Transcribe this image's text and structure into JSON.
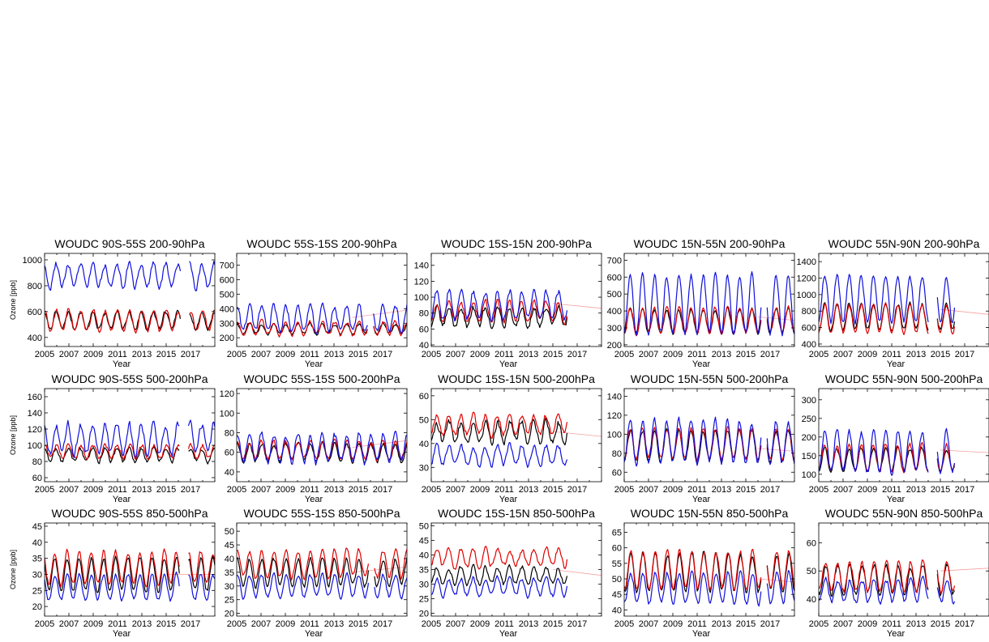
{
  "figure": {
    "colors": {
      "obs": "#000000",
      "model_a": "#e00000",
      "model_b": "#1010dd",
      "trend": "#f5a0a0"
    },
    "xticks": [
      "2005",
      "2007",
      "2009",
      "2011",
      "2013",
      "2015",
      "2017"
    ],
    "xlabel": "Year",
    "ylabel": "Ozone [ppb]",
    "rows": [
      {
        "layer": "200-90hPa"
      },
      {
        "layer": "500-200hPa"
      },
      {
        "layer": "850-500hPa"
      }
    ],
    "cols": [
      {
        "band": "90S-55S"
      },
      {
        "band": "55S-15S"
      },
      {
        "band": "15S-15N"
      },
      {
        "band": "15N-55N"
      },
      {
        "band": "55N-90N"
      }
    ]
  },
  "chart_data": [
    {
      "type": "line",
      "title": "WOUDC 90S-55S 200-90hPa",
      "xlabel": "Year",
      "ylabel": "Ozone [ppb]",
      "xlim": [
        2005,
        2019
      ],
      "ylim": [
        330,
        1050
      ],
      "yticks": [
        400,
        600,
        800,
        1000
      ],
      "x_end": 2019,
      "gaps": [
        [
          2016.2,
          2016.9
        ]
      ],
      "series": [
        {
          "color": "#000000",
          "mean": 530,
          "amp": 65,
          "phase": 0.7,
          "noise": 30
        },
        {
          "color": "#e00000",
          "mean": 530,
          "amp": 80,
          "phase": 0.75,
          "noise": 30
        },
        {
          "color": "#1010dd",
          "mean": 880,
          "amp": 90,
          "phase": 0.7,
          "noise": 45
        }
      ]
    },
    {
      "type": "line",
      "title": "WOUDC 55S-15S 200-90hPa",
      "xlabel": "Year",
      "ylabel": "",
      "xlim": [
        2005,
        2019
      ],
      "ylim": [
        140,
        780
      ],
      "yticks": [
        200,
        300,
        400,
        500,
        600,
        700
      ],
      "x_end": 2019,
      "gaps": [
        [
          2015.8,
          2016.2
        ]
      ],
      "trend": [
        [
          2014.5,
          340
        ],
        [
          2019,
          390
        ]
      ],
      "series": [
        {
          "color": "#000000",
          "mean": 260,
          "amp": 35,
          "phase": 0.8,
          "noise": 20
        },
        {
          "color": "#e00000",
          "mean": 265,
          "amp": 45,
          "phase": 0.8,
          "noise": 25
        },
        {
          "color": "#1010dd",
          "mean": 330,
          "amp": 90,
          "phase": 0.8,
          "noise": 40
        }
      ]
    },
    {
      "type": "line",
      "title": "WOUDC 15S-15N 200-90hPa",
      "xlabel": "Year",
      "ylabel": "",
      "xlim": [
        2005,
        2019
      ],
      "ylim": [
        38,
        155
      ],
      "yticks": [
        40,
        60,
        80,
        100,
        120,
        140
      ],
      "x_end": 2016.2,
      "gaps": [],
      "trend": [
        [
          2015,
          92
        ],
        [
          2019,
          86
        ]
      ],
      "series": [
        {
          "color": "#000000",
          "mean": 75,
          "amp": 12,
          "phase": 0.2,
          "noise": 7
        },
        {
          "color": "#e00000",
          "mean": 82,
          "amp": 12,
          "phase": 0.2,
          "noise": 6
        },
        {
          "color": "#1010dd",
          "mean": 90,
          "amp": 18,
          "phase": 0.2,
          "noise": 8
        }
      ]
    },
    {
      "type": "line",
      "title": "WOUDC 15N-55N 200-90hPa",
      "xlabel": "Year",
      "ylabel": "",
      "xlim": [
        2005,
        2019
      ],
      "ylim": [
        190,
        740
      ],
      "yticks": [
        200,
        300,
        400,
        500,
        600,
        700
      ],
      "x_end": 2019,
      "gaps": [
        [
          2016.3,
          2016.7
        ]
      ],
      "trend": [
        [
          2016,
          365
        ],
        [
          2019,
          345
        ]
      ],
      "series": [
        {
          "color": "#000000",
          "mean": 340,
          "amp": 70,
          "phase": 0.25,
          "noise": 20
        },
        {
          "color": "#e00000",
          "mean": 345,
          "amp": 75,
          "phase": 0.25,
          "noise": 20
        },
        {
          "color": "#1010dd",
          "mean": 440,
          "amp": 170,
          "phase": 0.25,
          "noise": 30
        }
      ]
    },
    {
      "type": "line",
      "title": "WOUDC 55N-90N 200-90hPa",
      "xlabel": "Year",
      "ylabel": "",
      "xlim": [
        2005,
        2019
      ],
      "ylim": [
        370,
        1500
      ],
      "yticks": [
        400,
        600,
        800,
        1000,
        1200,
        1400
      ],
      "x_end": 2016.2,
      "gaps": [
        [
          2014.0,
          2014.7
        ]
      ],
      "trend": [
        [
          2015,
          820
        ],
        [
          2019,
          760
        ]
      ],
      "series": [
        {
          "color": "#000000",
          "mean": 730,
          "amp": 160,
          "phase": 0.25,
          "noise": 40
        },
        {
          "color": "#e00000",
          "mean": 710,
          "amp": 170,
          "phase": 0.25,
          "noise": 40
        },
        {
          "color": "#1010dd",
          "mean": 950,
          "amp": 280,
          "phase": 0.25,
          "noise": 60
        }
      ]
    },
    {
      "type": "line",
      "title": "WOUDC 90S-55S 500-200hPa",
      "xlabel": "Year",
      "ylabel": "Ozone [ppb]",
      "xlim": [
        2005,
        2019
      ],
      "ylim": [
        55,
        170
      ],
      "yticks": [
        60,
        80,
        100,
        120,
        140,
        160
      ],
      "x_end": 2019,
      "gaps": [
        [
          2016.1,
          2016.8
        ]
      ],
      "series": [
        {
          "color": "#000000",
          "mean": 88,
          "amp": 8,
          "phase": 0.7,
          "noise": 5
        },
        {
          "color": "#e00000",
          "mean": 92,
          "amp": 8,
          "phase": 0.75,
          "noise": 5
        },
        {
          "color": "#1010dd",
          "mean": 108,
          "amp": 18,
          "phase": 0.7,
          "noise": 9
        }
      ]
    },
    {
      "type": "line",
      "title": "WOUDC 55S-15S 500-200hPa",
      "xlabel": "Year",
      "ylabel": "",
      "xlim": [
        2005,
        2019
      ],
      "ylim": [
        30,
        125
      ],
      "yticks": [
        40,
        60,
        80,
        100,
        120
      ],
      "x_end": 2019,
      "gaps": [],
      "trend": [
        [
          2014.5,
          65
        ],
        [
          2019,
          72
        ]
      ],
      "series": [
        {
          "color": "#000000",
          "mean": 60,
          "amp": 9,
          "phase": 0.8,
          "noise": 4
        },
        {
          "color": "#e00000",
          "mean": 62,
          "amp": 9,
          "phase": 0.8,
          "noise": 4
        },
        {
          "color": "#1010dd",
          "mean": 64,
          "amp": 14,
          "phase": 0.8,
          "noise": 6
        }
      ]
    },
    {
      "type": "line",
      "title": "WOUDC 15S-15N 500-200hPa",
      "xlabel": "Year",
      "ylabel": "",
      "xlim": [
        2005,
        2019
      ],
      "ylim": [
        24,
        63
      ],
      "yticks": [
        30,
        40,
        50,
        60
      ],
      "x_end": 2016.2,
      "gaps": [],
      "trend": [
        [
          2015,
          45
        ],
        [
          2019,
          43
        ]
      ],
      "series": [
        {
          "color": "#000000",
          "mean": 45,
          "amp": 4,
          "phase": 0.2,
          "noise": 3
        },
        {
          "color": "#e00000",
          "mean": 48,
          "amp": 4,
          "phase": 0.2,
          "noise": 2.5
        },
        {
          "color": "#1010dd",
          "mean": 35,
          "amp": 4,
          "phase": 0.2,
          "noise": 2
        }
      ]
    },
    {
      "type": "line",
      "title": "WOUDC 15N-55N 500-200hPa",
      "xlabel": "Year",
      "ylabel": "",
      "xlim": [
        2005,
        2019
      ],
      "ylim": [
        50,
        148
      ],
      "yticks": [
        60,
        80,
        100,
        120,
        140
      ],
      "x_end": 2019,
      "gaps": [
        [
          2016.3,
          2016.7
        ]
      ],
      "trend": [
        [
          2016,
          85
        ],
        [
          2019,
          82
        ]
      ],
      "series": [
        {
          "color": "#000000",
          "mean": 88,
          "amp": 16,
          "phase": 0.25,
          "noise": 5
        },
        {
          "color": "#e00000",
          "mean": 90,
          "amp": 16,
          "phase": 0.25,
          "noise": 5
        },
        {
          "color": "#1010dd",
          "mean": 92,
          "amp": 22,
          "phase": 0.25,
          "noise": 6
        }
      ]
    },
    {
      "type": "line",
      "title": "WOUDC 55N-90N 500-200hPa",
      "xlabel": "Year",
      "ylabel": "",
      "xlim": [
        2005,
        2019
      ],
      "ylim": [
        80,
        330
      ],
      "yticks": [
        100,
        150,
        200,
        250,
        300
      ],
      "x_end": 2016.2,
      "gaps": [
        [
          2014.0,
          2014.7
        ]
      ],
      "trend": [
        [
          2015,
          165
        ],
        [
          2019,
          158
        ]
      ],
      "series": [
        {
          "color": "#000000",
          "mean": 140,
          "amp": 30,
          "phase": 0.25,
          "noise": 10
        },
        {
          "color": "#e00000",
          "mean": 145,
          "amp": 35,
          "phase": 0.25,
          "noise": 10
        },
        {
          "color": "#1010dd",
          "mean": 160,
          "amp": 55,
          "phase": 0.25,
          "noise": 15
        }
      ]
    },
    {
      "type": "line",
      "title": "WOUDC 90S-55S 850-500hPa",
      "xlabel": "Year",
      "ylabel": "Ozone [ppb]",
      "xlim": [
        2005,
        2019
      ],
      "ylim": [
        17,
        46
      ],
      "yticks": [
        20,
        25,
        30,
        35,
        40,
        45
      ],
      "x_end": 2019,
      "gaps": [
        [
          2016.1,
          2016.8
        ]
      ],
      "trend": [
        [
          2015,
          30
        ],
        [
          2019,
          30
        ]
      ],
      "series": [
        {
          "color": "#000000",
          "mean": 30,
          "amp": 5,
          "phase": 0.6,
          "noise": 1.2
        },
        {
          "color": "#e00000",
          "mean": 32,
          "amp": 5,
          "phase": 0.6,
          "noise": 1.5
        },
        {
          "color": "#1010dd",
          "mean": 26,
          "amp": 4,
          "phase": 0.6,
          "noise": 1.2
        }
      ]
    },
    {
      "type": "line",
      "title": "WOUDC 55S-15S 850-500hPa",
      "xlabel": "Year",
      "ylabel": "",
      "xlim": [
        2005,
        2019
      ],
      "ylim": [
        19,
        53
      ],
      "yticks": [
        20,
        25,
        30,
        35,
        40,
        45,
        50
      ],
      "x_end": 2019,
      "gaps": [
        [
          2015.9,
          2016.3
        ]
      ],
      "trend": [
        [
          2014.5,
          35
        ],
        [
          2019,
          37
        ]
      ],
      "series": [
        {
          "color": "#000000",
          "mean": 35,
          "amp": 5,
          "phase": 0.8,
          "noise": 1.5
        },
        {
          "color": "#e00000",
          "mean": 38,
          "amp": 5,
          "phase": 0.8,
          "noise": 1.8
        },
        {
          "color": "#1010dd",
          "mean": 30,
          "amp": 4,
          "phase": 0.8,
          "noise": 1.5
        }
      ]
    },
    {
      "type": "line",
      "title": "WOUDC 15S-15N 850-500hPa",
      "xlabel": "Year",
      "ylabel": "",
      "xlim": [
        2005,
        2019
      ],
      "ylim": [
        19,
        51
      ],
      "yticks": [
        20,
        25,
        30,
        35,
        40,
        45,
        50
      ],
      "x_end": 2016.2,
      "gaps": [],
      "trend": [
        [
          2015,
          35
        ],
        [
          2019,
          33
        ]
      ],
      "series": [
        {
          "color": "#000000",
          "mean": 33,
          "amp": 3,
          "phase": 0.2,
          "noise": 1.5
        },
        {
          "color": "#e00000",
          "mean": 39,
          "amp": 3,
          "phase": 0.2,
          "noise": 1.8
        },
        {
          "color": "#1010dd",
          "mean": 29,
          "amp": 3,
          "phase": 0.2,
          "noise": 1.5
        }
      ]
    },
    {
      "type": "line",
      "title": "WOUDC 15N-55N 850-500hPa",
      "xlabel": "Year",
      "ylabel": "",
      "xlim": [
        2005,
        2019
      ],
      "ylim": [
        38,
        68
      ],
      "yticks": [
        40,
        45,
        50,
        55,
        60,
        65
      ],
      "x_end": 2019,
      "gaps": [
        [
          2016.3,
          2016.7
        ]
      ],
      "trend": [
        [
          2016,
          50
        ],
        [
          2019,
          49
        ]
      ],
      "series": [
        {
          "color": "#000000",
          "mean": 52,
          "amp": 6,
          "phase": 0.3,
          "noise": 1.5
        },
        {
          "color": "#e00000",
          "mean": 53,
          "amp": 6,
          "phase": 0.3,
          "noise": 1.5
        },
        {
          "color": "#1010dd",
          "mean": 47,
          "amp": 5,
          "phase": 0.3,
          "noise": 1.5
        }
      ]
    },
    {
      "type": "line",
      "title": "WOUDC 55N-90N 850-500hPa",
      "xlabel": "Year",
      "ylabel": "",
      "xlim": [
        2005,
        2019
      ],
      "ylim": [
        34,
        67
      ],
      "yticks": [
        40,
        50,
        60
      ],
      "x_end": 2016.2,
      "gaps": [
        [
          2014.0,
          2014.7
        ]
      ],
      "trend": [
        [
          2015,
          50
        ],
        [
          2019,
          51
        ]
      ],
      "series": [
        {
          "color": "#000000",
          "mean": 47,
          "amp": 5,
          "phase": 0.3,
          "noise": 1.8
        },
        {
          "color": "#e00000",
          "mean": 48,
          "amp": 5,
          "phase": 0.3,
          "noise": 1.8
        },
        {
          "color": "#1010dd",
          "mean": 43,
          "amp": 4,
          "phase": 0.3,
          "noise": 1.8
        }
      ]
    }
  ]
}
